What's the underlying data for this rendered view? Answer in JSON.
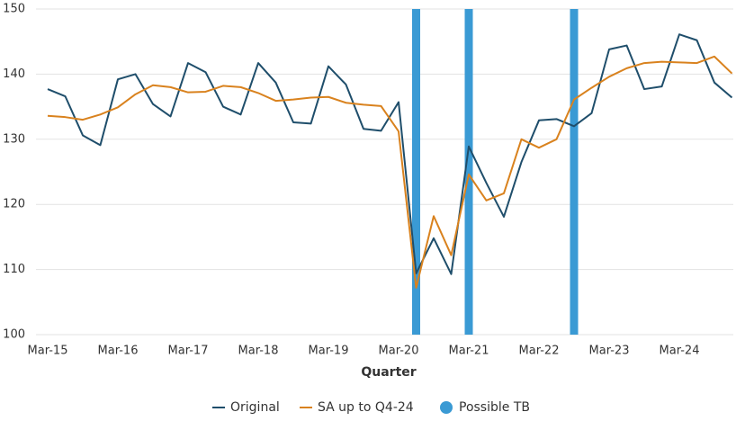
{
  "chart_data": {
    "type": "line",
    "x_label": "Quarter",
    "categories": [
      "Mar-15",
      null,
      null,
      null,
      "Mar-16",
      null,
      null,
      null,
      "Mar-17",
      null,
      null,
      null,
      "Mar-18",
      null,
      null,
      null,
      "Mar-19",
      null,
      null,
      null,
      "Mar-20",
      null,
      null,
      null,
      "Mar-21",
      null,
      null,
      null,
      "Mar-22",
      null,
      null,
      null,
      "Mar-23",
      null,
      null,
      null,
      "Mar-24",
      null,
      null,
      null
    ],
    "series": [
      {
        "name": "Original",
        "type": "line",
        "color": "#1f4e6b",
        "values": [
          137.7,
          136.6,
          130.6,
          129.1,
          139.2,
          140.0,
          135.4,
          133.5,
          141.7,
          140.3,
          135.0,
          133.8,
          141.7,
          138.7,
          132.6,
          132.4,
          141.2,
          138.4,
          131.6,
          131.3,
          135.7,
          109.4,
          114.8,
          109.3,
          128.9,
          123.3,
          118.1,
          126.5,
          132.9,
          133.1,
          132.0,
          134.0,
          143.8,
          144.4,
          137.7,
          138.1,
          146.1,
          145.2,
          138.7,
          136.4
        ]
      },
      {
        "name": "SA up to Q4-24",
        "type": "line",
        "color": "#d9821e",
        "values": [
          133.6,
          133.4,
          133.0,
          133.8,
          134.9,
          136.9,
          138.3,
          138.0,
          137.2,
          137.3,
          138.2,
          138.0,
          137.1,
          135.9,
          136.1,
          136.4,
          136.5,
          135.6,
          135.3,
          135.1,
          131.2,
          107.2,
          118.2,
          112.2,
          124.6,
          120.6,
          121.7,
          130.0,
          128.7,
          130.0,
          136.1,
          137.9,
          139.6,
          140.9,
          141.7,
          141.9,
          141.8,
          141.7,
          142.7,
          140.1
        ]
      },
      {
        "name": "Possible TB",
        "type": "bar",
        "color": "#3a9ad4",
        "values": [
          null,
          null,
          null,
          null,
          null,
          null,
          null,
          null,
          null,
          null,
          null,
          null,
          null,
          null,
          null,
          null,
          null,
          null,
          null,
          null,
          null,
          150,
          null,
          null,
          150,
          null,
          null,
          null,
          null,
          null,
          150,
          null,
          null,
          null,
          null,
          null,
          null,
          null,
          null,
          null
        ]
      }
    ],
    "ylim": [
      100,
      150
    ],
    "yticks": [
      100,
      110,
      120,
      130,
      140,
      150
    ],
    "grid": true
  }
}
